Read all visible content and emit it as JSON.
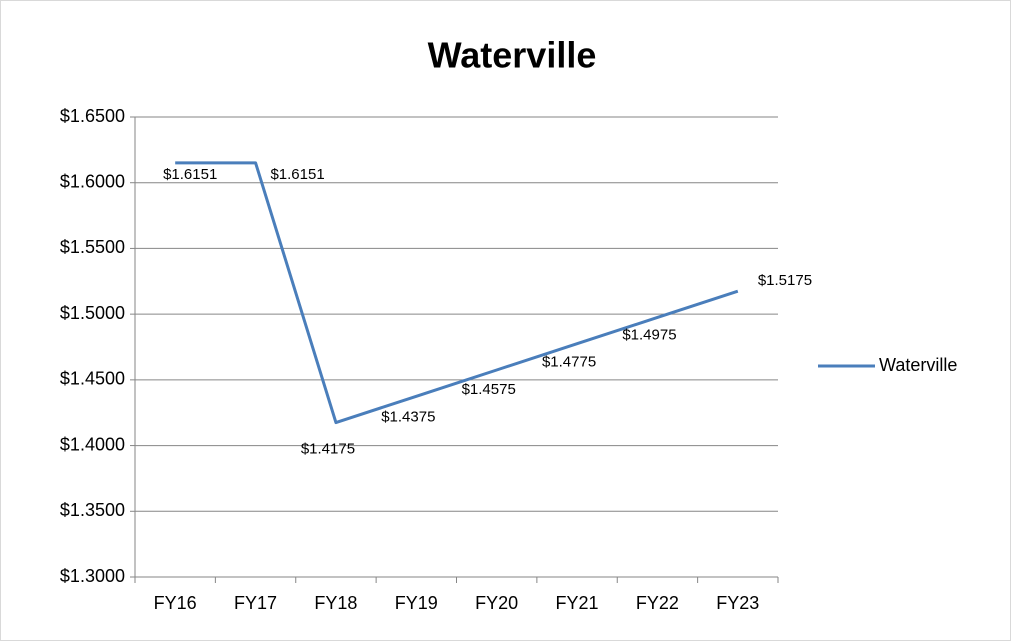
{
  "chart_data": {
    "type": "line",
    "title": "Waterville",
    "categories": [
      "FY16",
      "FY17",
      "FY18",
      "FY19",
      "FY20",
      "FY21",
      "FY22",
      "FY23"
    ],
    "series": [
      {
        "name": "Waterville",
        "color": "#4a7ebb",
        "values": [
          1.6151,
          1.6151,
          1.4175,
          1.4375,
          1.4575,
          1.4775,
          1.4975,
          1.5175
        ],
        "value_labels": [
          "$1.6151",
          "$1.6151",
          "$1.4175",
          "$1.4375",
          "$1.4575",
          "$1.4775",
          "$1.4975",
          "$1.5175"
        ]
      }
    ],
    "ylim": [
      1.3,
      1.65
    ],
    "yticks": [
      {
        "value": 1.3,
        "label": "$1.3000"
      },
      {
        "value": 1.35,
        "label": "$1.3500"
      },
      {
        "value": 1.4,
        "label": "$1.4000"
      },
      {
        "value": 1.45,
        "label": "$1.4500"
      },
      {
        "value": 1.5,
        "label": "$1.5000"
      },
      {
        "value": 1.55,
        "label": "$1.5500"
      },
      {
        "value": 1.6,
        "label": "$1.6000"
      },
      {
        "value": 1.65,
        "label": "$1.6500"
      }
    ],
    "grid": true,
    "legend": "right"
  }
}
